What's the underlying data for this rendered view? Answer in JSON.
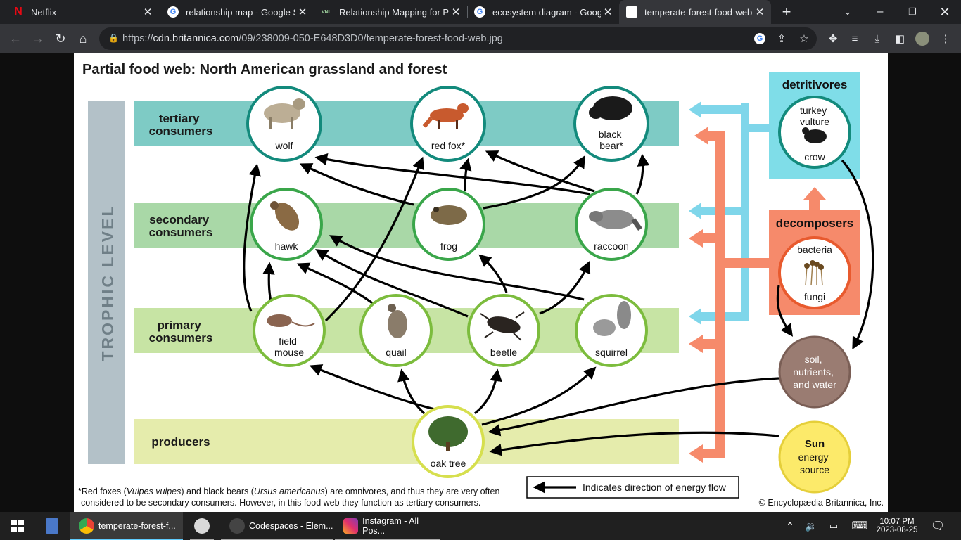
{
  "browser": {
    "tabs": [
      {
        "title": "Netflix",
        "icon": "netflix-icon",
        "active": false
      },
      {
        "title": "relationship map - Google Se",
        "icon": "google-icon",
        "active": false
      },
      {
        "title": "Relationship Mapping for Pu",
        "icon": "vnl-icon",
        "icon_text": "VNL",
        "active": false
      },
      {
        "title": "ecosystem diagram - Google",
        "icon": "google-icon",
        "active": false
      },
      {
        "title": "temperate-forest-food-web.j",
        "icon": "page-icon",
        "active": true
      }
    ],
    "url_prefix": "https://",
    "url_host": "cdn.britannica.com",
    "url_path": "/09/238009-050-E648D3D0/temperate-forest-food-web.jpg"
  },
  "diagram": {
    "title": "Partial food web: North American grassland and forest",
    "axis_label": "TROPHIC LEVEL",
    "levels": {
      "tertiary": [
        "tertiary",
        "consumers"
      ],
      "secondary": [
        "secondary",
        "consumers"
      ],
      "primary": [
        "primary",
        "consumers"
      ],
      "producers": [
        "producers"
      ]
    },
    "nodes": {
      "wolf": [
        "wolf"
      ],
      "red_fox": [
        "red fox*"
      ],
      "black_bear": [
        "black",
        "bear*"
      ],
      "hawk": [
        "hawk"
      ],
      "frog": [
        "frog"
      ],
      "raccoon": [
        "raccoon"
      ],
      "field_mouse": [
        "field",
        "mouse"
      ],
      "quail": [
        "quail"
      ],
      "beetle": [
        "beetle"
      ],
      "squirrel": [
        "squirrel"
      ],
      "oak_tree": [
        "oak tree"
      ],
      "vulture_crow": {
        "top": [
          "turkey",
          "vulture"
        ],
        "bottom": [
          "crow"
        ]
      },
      "bacteria_fungi": {
        "top": [
          "bacteria"
        ],
        "bottom": [
          "fungi"
        ]
      },
      "soil": [
        "soil,",
        "nutrients,",
        "and water"
      ],
      "sun": {
        "bold": "Sun",
        "rest": [
          "energy",
          "source"
        ]
      }
    },
    "detritivores": "detritivores",
    "decomposers": "decomposers",
    "footnote": {
      "a": "*Red foxes (",
      "b": "Vulpes vulpes",
      "c": ") and black bears (",
      "d": "Ursus americanus",
      "e": ") are omnivores, and thus they are very often",
      "line2": "considered to be secondary consumers. However, in this food web they function as tertiary consumers."
    },
    "legend": "Indicates direction of energy flow",
    "copyright": "© Encyclopædia Britannica, Inc.",
    "colors": {
      "tertiary_band": "#7ecbc5",
      "secondary_band": "#a9d8a7",
      "primary_band": "#c7e4a4",
      "producer_band": "#e5ecac",
      "axis_bar": "#b3c1c8",
      "ring_teal": "#138a7c",
      "ring_green": "#3aa64a",
      "ring_lime": "#7cbc3d",
      "ring_yellow": "#d6df4e",
      "detritivore_box": "#7fdde8",
      "decomposer_box": "#f68a6b",
      "soil_fill": "#9a7c72",
      "sun_fill": "#fcea6a"
    }
  },
  "taskbar": {
    "apps": [
      {
        "label": "temperate-forest-f...",
        "icon": "chrome-icon",
        "active": true
      },
      {
        "label": "",
        "icon": "snipping-tool-icon",
        "active": false
      },
      {
        "label": "Codespaces - Elem...",
        "icon": "codespaces-icon",
        "active": false
      },
      {
        "label": "Instagram - All Pos...",
        "icon": "instagram-icon",
        "active": false
      }
    ],
    "time": "10:07 PM",
    "date": "2023-08-25"
  }
}
